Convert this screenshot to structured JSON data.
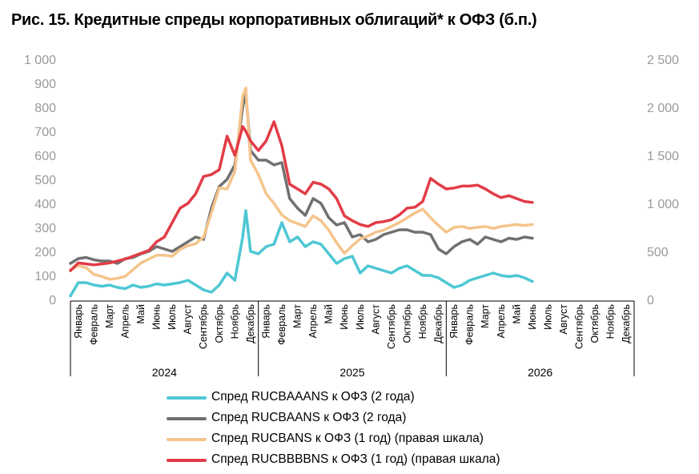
{
  "chart_data": {
    "type": "line",
    "title": "Рис. 15. Кредитные спреды корпоративных облигаций* к ОФЗ (б.п.)",
    "left_axis": {
      "ticks": [
        "0",
        "100",
        "200",
        "300",
        "400",
        "500",
        "600",
        "700",
        "800",
        "900",
        "1 000"
      ],
      "ylim": [
        0,
        1000
      ]
    },
    "right_axis": {
      "ticks": [
        "0",
        "500",
        "1 000",
        "1 500",
        "2 000",
        "2 500"
      ],
      "ylim": [
        0,
        2500
      ]
    },
    "x_months": [
      "Январь",
      "Февраль",
      "Март",
      "Апрель",
      "Май",
      "Июнь",
      "Июль",
      "Август",
      "Сентябрь",
      "Октябрь",
      "Ноябрь",
      "Декабрь"
    ],
    "x_years": [
      "2024",
      "2025",
      "2026"
    ],
    "x_range": [
      0,
      36
    ],
    "grid": false,
    "legend_position": "bottom",
    "series": [
      {
        "name": "Спред RUCBAAANS к ОФЗ (2 года)",
        "axis": "left",
        "color": "#4ec7d4",
        "x": [
          0,
          0.5,
          1,
          1.5,
          2,
          2.5,
          3,
          3.5,
          4,
          4.5,
          5,
          5.5,
          6,
          6.5,
          7,
          7.5,
          8,
          8.5,
          9,
          9.5,
          10,
          10.5,
          11,
          11.2,
          11.5,
          12,
          12.5,
          13,
          13.5,
          14,
          14.5,
          15,
          15.5,
          16,
          16.5,
          17,
          17.5,
          18,
          18.5,
          19,
          19.5,
          20,
          20.5,
          21,
          21.5,
          22,
          22.5,
          23,
          23.5,
          24,
          24.5,
          25,
          25.5,
          26,
          26.5,
          27,
          27.5,
          28,
          28.5,
          29,
          29.5
        ],
        "y": [
          15,
          70,
          70,
          60,
          55,
          60,
          50,
          45,
          60,
          50,
          55,
          65,
          60,
          65,
          70,
          80,
          60,
          40,
          30,
          60,
          110,
          80,
          260,
          370,
          200,
          190,
          220,
          230,
          320,
          240,
          260,
          220,
          240,
          230,
          190,
          150,
          170,
          180,
          110,
          140,
          130,
          120,
          110,
          130,
          140,
          120,
          100,
          100,
          90,
          70,
          50,
          60,
          80,
          90,
          100,
          110,
          100,
          95,
          100,
          90,
          75
        ]
      },
      {
        "name": "Спред RUCBAANS к ОФЗ (2 года)",
        "axis": "left",
        "color": "#707070",
        "x": [
          0,
          0.5,
          1,
          1.5,
          2,
          2.5,
          3,
          3.5,
          4,
          4.5,
          5,
          5.5,
          6,
          6.5,
          7,
          7.5,
          8,
          8.5,
          9,
          9.5,
          10,
          10.5,
          11,
          11.2,
          11.5,
          12,
          12.5,
          13,
          13.5,
          14,
          14.5,
          15,
          15.5,
          16,
          16.5,
          17,
          17.5,
          18,
          18.5,
          19,
          19.5,
          20,
          20.5,
          21,
          21.5,
          22,
          22.5,
          23,
          23.5,
          24,
          24.5,
          25,
          25.5,
          26,
          26.5,
          27,
          27.5,
          28,
          28.5,
          29,
          29.5
        ],
        "y": [
          150,
          170,
          175,
          165,
          160,
          160,
          150,
          170,
          175,
          190,
          200,
          220,
          210,
          200,
          220,
          240,
          260,
          250,
          380,
          470,
          500,
          560,
          800,
          860,
          620,
          580,
          580,
          560,
          570,
          420,
          380,
          350,
          420,
          400,
          340,
          310,
          320,
          260,
          270,
          240,
          250,
          270,
          280,
          290,
          290,
          280,
          280,
          270,
          210,
          190,
          220,
          240,
          250,
          230,
          260,
          250,
          240,
          255,
          250,
          260,
          255
        ]
      },
      {
        "name": "Спред RUCBANS к ОФЗ (1 год) (правая шкала)",
        "axis": "right",
        "color": "#f5c48c",
        "x": [
          0,
          0.5,
          1,
          1.5,
          2,
          2.5,
          3,
          3.5,
          4,
          4.5,
          5,
          5.5,
          6,
          6.5,
          7,
          7.5,
          8,
          8.5,
          9,
          9.5,
          10,
          10.5,
          11,
          11.2,
          11.5,
          12,
          12.5,
          13,
          13.5,
          14,
          14.5,
          15,
          15.5,
          16,
          16.5,
          17,
          17.5,
          18,
          18.5,
          19,
          19.5,
          20,
          20.5,
          21,
          21.5,
          22,
          22.5,
          23,
          23.5,
          24,
          24.5,
          25,
          25.5,
          26,
          26.5,
          27,
          27.5,
          28,
          28.5,
          29,
          29.5
        ],
        "y": [
          310,
          350,
          330,
          260,
          240,
          210,
          220,
          240,
          310,
          380,
          420,
          460,
          460,
          450,
          520,
          560,
          580,
          650,
          900,
          1160,
          1150,
          1330,
          2120,
          2200,
          1450,
          1300,
          1100,
          1000,
          880,
          820,
          790,
          760,
          870,
          820,
          720,
          590,
          480,
          560,
          630,
          660,
          700,
          720,
          760,
          800,
          850,
          900,
          940,
          850,
          770,
          700,
          750,
          760,
          740,
          750,
          760,
          740,
          760,
          770,
          780,
          770,
          780
        ]
      },
      {
        "name": "Спред RUCBBBBNS к ОФЗ (1 год) (правая шкала)",
        "axis": "right",
        "color": "#e23c47",
        "x": [
          0,
          0.5,
          1,
          1.5,
          2,
          2.5,
          3,
          3.5,
          4,
          4.5,
          5,
          5.5,
          6,
          6.5,
          7,
          7.5,
          8,
          8.5,
          9,
          9.5,
          10,
          10.5,
          11,
          11.2,
          11.5,
          12,
          12.5,
          13,
          13.5,
          14,
          14.5,
          15,
          15.5,
          16,
          16.5,
          17,
          17.5,
          18,
          18.5,
          19,
          19.5,
          20,
          20.5,
          21,
          21.5,
          22,
          22.5,
          23,
          23.5,
          24,
          24.5,
          25,
          25.5,
          26,
          26.5,
          27,
          27.5,
          28,
          28.5,
          29,
          29.5
        ],
        "y": [
          300,
          380,
          370,
          360,
          370,
          380,
          400,
          420,
          450,
          480,
          510,
          600,
          650,
          800,
          950,
          1000,
          1100,
          1280,
          1300,
          1350,
          1700,
          1500,
          1800,
          1750,
          1650,
          1550,
          1650,
          1850,
          1600,
          1200,
          1150,
          1100,
          1220,
          1200,
          1150,
          1050,
          870,
          820,
          780,
          760,
          800,
          810,
          830,
          880,
          950,
          960,
          1020,
          1260,
          1200,
          1150,
          1160,
          1180,
          1180,
          1190,
          1150,
          1100,
          1060,
          1080,
          1050,
          1020,
          1010
        ]
      }
    ]
  }
}
